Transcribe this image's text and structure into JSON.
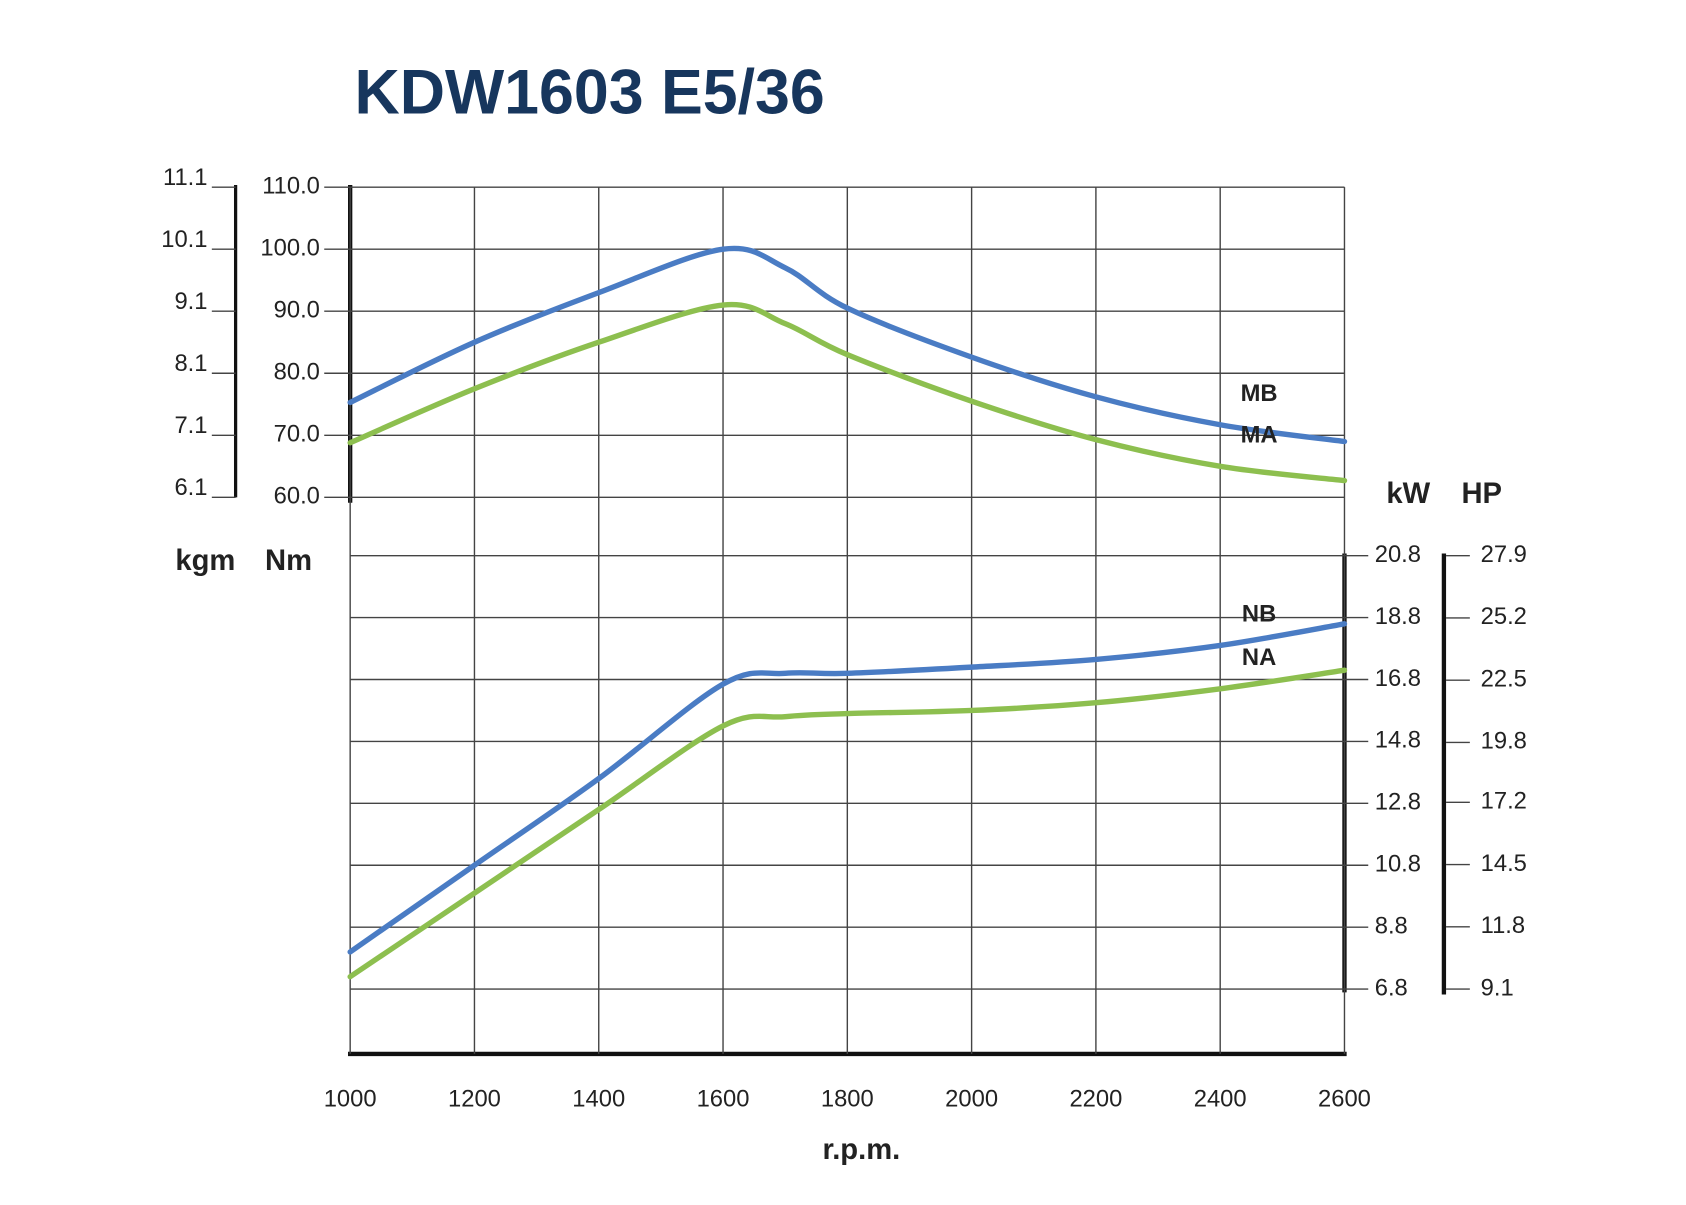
{
  "chart_data": {
    "type": "line",
    "title": "KDW1603 E5/36",
    "x_label": "r.p.m.",
    "x": [
      1000,
      1200,
      1400,
      1600,
      1700,
      1800,
      2000,
      2200,
      2400,
      2600
    ],
    "xlim": [
      1000,
      2600
    ],
    "xticks": [
      1000,
      1200,
      1400,
      1600,
      1800,
      2000,
      2200,
      2400,
      2600
    ],
    "y_label": "Nm",
    "ylim": [
      60,
      110
    ],
    "yticks": [
      {
        "value": 60,
        "label": "60.0"
      },
      {
        "value": 70,
        "label": "70.0"
      },
      {
        "value": 80,
        "label": "80.0"
      },
      {
        "value": 90,
        "label": "90.0"
      },
      {
        "value": 100,
        "label": "100.0"
      },
      {
        "value": 110,
        "label": "110.0"
      }
    ],
    "kgm_label": "kgm",
    "kgm_lim": [
      6.1,
      11.1
    ],
    "kgm_ticks": [
      6.1,
      7.1,
      8.1,
      9.1,
      10.1,
      11.1
    ],
    "y2_label": "kW",
    "y2lim": [
      6.8,
      20.8
    ],
    "y2ticks": [
      6.8,
      8.8,
      10.8,
      12.8,
      14.8,
      16.8,
      18.8,
      20.8
    ],
    "hp_label": "HP",
    "hp_lim": [
      9.1,
      27.9
    ],
    "hp_ticks": [
      9.1,
      11.8,
      14.5,
      17.2,
      19.8,
      22.5,
      25.2,
      27.9
    ],
    "grid": true,
    "series": [
      {
        "name": "MB",
        "color": "#4a7cc4",
        "values": [
          75.3,
          85,
          93,
          100,
          97,
          90.5,
          82.6,
          76.2,
          71.7,
          69
        ]
      },
      {
        "name": "MA",
        "color": "#8dbf4f",
        "values": [
          68.8,
          77.5,
          85,
          91,
          88,
          83,
          75.5,
          69.3,
          65,
          62.7
        ]
      },
      {
        "name": "NB",
        "color": "#4a7cc4",
        "axis": "y2",
        "values": [
          8.0,
          10.8,
          13.6,
          16.65,
          17.0,
          17.0,
          17.2,
          17.45,
          17.9,
          18.6
        ]
      },
      {
        "name": "NA",
        "color": "#8dbf4f",
        "axis": "y2",
        "values": [
          7.2,
          9.9,
          12.6,
          15.3,
          15.6,
          15.7,
          15.8,
          16.05,
          16.5,
          17.1
        ]
      }
    ]
  }
}
